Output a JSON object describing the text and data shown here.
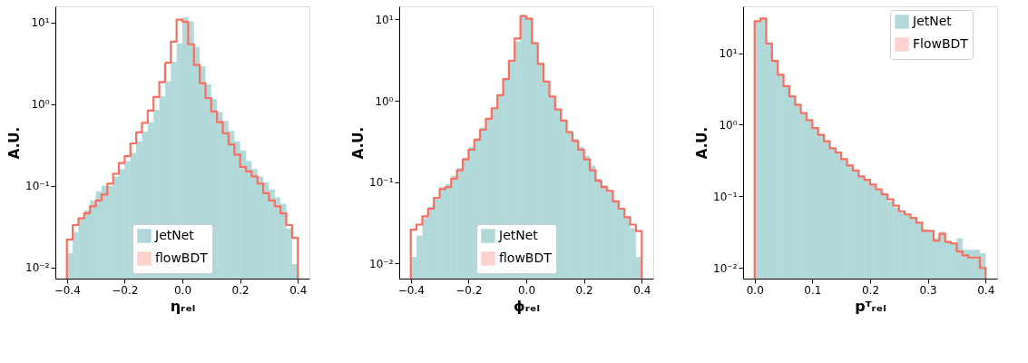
{
  "chart_data": [
    {
      "type": "histogram",
      "xlabel": "ηᵣₑₗ",
      "ylabel": "A.U.",
      "log": true,
      "grid": false,
      "legend": "bottom",
      "bins": [
        -0.4,
        -0.38,
        -0.36,
        -0.34,
        -0.32,
        -0.3,
        -0.28,
        -0.26,
        -0.24,
        -0.22,
        -0.2,
        -0.18,
        -0.16,
        -0.14,
        -0.12,
        -0.1,
        -0.08,
        -0.06,
        -0.04,
        -0.02,
        0.0,
        0.02,
        0.04,
        0.06,
        0.08,
        0.1,
        0.12,
        0.14,
        0.16,
        0.18,
        0.2,
        0.22,
        0.24,
        0.26,
        0.28,
        0.3,
        0.32,
        0.34,
        0.36,
        0.38,
        0.4
      ],
      "xlim": [
        -0.44,
        0.44
      ],
      "xticks": [
        {
          "value": -0.4,
          "label": "−0.4"
        },
        {
          "value": -0.2,
          "label": "−0.2"
        },
        {
          "value": 0,
          "label": "0.0"
        },
        0.2,
        0.4
      ],
      "ylim": [
        0.0073,
        15.7
      ],
      "yticks": [
        {
          "value": 0.01,
          "label": "10⁻²"
        },
        {
          "value": 0.1,
          "label": "10⁻¹"
        },
        {
          "value": 1,
          "label": "10⁰"
        },
        {
          "value": 10,
          "label": "10¹"
        }
      ],
      "series": [
        {
          "name": "JetNet",
          "color": "#008080",
          "line_style": "dotted",
          "values": [
            0.015,
            0.027,
            0.04,
            0.05,
            0.066,
            0.085,
            0.1,
            0.1,
            0.13,
            0.16,
            0.2,
            0.25,
            0.35,
            0.46,
            0.6,
            0.85,
            1.25,
            1.9,
            3.3,
            5.5,
            11.5,
            10.2,
            5.0,
            2.9,
            1.75,
            1.15,
            0.8,
            0.62,
            0.47,
            0.35,
            0.27,
            0.2,
            0.16,
            0.13,
            0.11,
            0.09,
            0.072,
            0.06,
            0.03,
            0.011
          ]
        },
        {
          "name": "flowBDT",
          "color": "#fa6e5f",
          "line_style": "solid",
          "values": [
            0.022,
            0.033,
            0.04,
            0.046,
            0.056,
            0.066,
            0.078,
            0.106,
            0.14,
            0.19,
            0.23,
            0.33,
            0.45,
            0.59,
            0.83,
            1.22,
            1.86,
            3.2,
            5.8,
            10.8,
            10.2,
            5.4,
            3.0,
            1.8,
            1.18,
            0.81,
            0.6,
            0.44,
            0.32,
            0.24,
            0.17,
            0.15,
            0.13,
            0.106,
            0.081,
            0.066,
            0.056,
            0.046,
            0.033,
            0.023
          ]
        }
      ]
    },
    {
      "type": "histogram",
      "xlabel": "ϕᵣₑₗ",
      "ylabel": "A.U.",
      "log": true,
      "grid": false,
      "legend": "bottom",
      "bins": [
        -0.4,
        -0.38,
        -0.36,
        -0.34,
        -0.32,
        -0.3,
        -0.28,
        -0.26,
        -0.24,
        -0.22,
        -0.2,
        -0.18,
        -0.16,
        -0.14,
        -0.12,
        -0.1,
        -0.08,
        -0.06,
        -0.04,
        -0.02,
        0.0,
        0.02,
        0.04,
        0.06,
        0.08,
        0.1,
        0.12,
        0.14,
        0.16,
        0.18,
        0.2,
        0.22,
        0.24,
        0.26,
        0.28,
        0.3,
        0.32,
        0.34,
        0.36,
        0.38,
        0.4
      ],
      "xlim": [
        -0.44,
        0.44
      ],
      "xticks": [
        {
          "value": -0.4,
          "label": "−0.4"
        },
        {
          "value": -0.2,
          "label": "−0.2"
        },
        {
          "value": 0,
          "label": "0.0"
        },
        0.2,
        0.4
      ],
      "ylim": [
        0.0065,
        14.5
      ],
      "yticks": [
        {
          "value": 0.01,
          "label": "10⁻²"
        },
        {
          "value": 0.1,
          "label": "10⁻¹"
        },
        {
          "value": 1,
          "label": "10⁰"
        },
        {
          "value": 10,
          "label": "10¹"
        }
      ],
      "series": [
        {
          "name": "JetNet",
          "color": "#008080",
          "line_style": "dotted",
          "values": [
            0.012,
            0.022,
            0.036,
            0.05,
            0.062,
            0.087,
            0.094,
            0.12,
            0.15,
            0.2,
            0.27,
            0.35,
            0.47,
            0.6,
            0.82,
            1.15,
            1.85,
            3.0,
            5.4,
            11.5,
            10.5,
            5.0,
            2.85,
            1.72,
            1.13,
            0.78,
            0.59,
            0.43,
            0.34,
            0.27,
            0.21,
            0.16,
            0.11,
            0.092,
            0.075,
            0.06,
            0.047,
            0.037,
            0.027,
            0.012
          ]
        },
        {
          "name": "flowBDT",
          "color": "#fa6e5f",
          "line_style": "solid",
          "values": [
            0.026,
            0.03,
            0.038,
            0.047,
            0.064,
            0.082,
            0.087,
            0.11,
            0.14,
            0.19,
            0.25,
            0.33,
            0.44,
            0.6,
            0.81,
            1.17,
            1.85,
            3.1,
            5.85,
            11.0,
            10.2,
            5.1,
            2.85,
            1.72,
            1.13,
            0.78,
            0.57,
            0.41,
            0.32,
            0.25,
            0.19,
            0.14,
            0.104,
            0.087,
            0.078,
            0.058,
            0.047,
            0.037,
            0.03,
            0.025
          ]
        }
      ]
    },
    {
      "type": "histogram",
      "xlabel": "pᵀᵣₑₗ",
      "ylabel": "A.U.",
      "log": true,
      "grid": false,
      "legend": "top right",
      "bins": [
        0.0,
        0.01,
        0.02,
        0.03,
        0.04,
        0.05,
        0.06,
        0.07,
        0.08,
        0.09,
        0.1,
        0.11,
        0.12,
        0.13,
        0.14,
        0.15,
        0.16,
        0.17,
        0.18,
        0.19,
        0.2,
        0.21,
        0.22,
        0.23,
        0.24,
        0.25,
        0.26,
        0.27,
        0.28,
        0.29,
        0.3,
        0.31,
        0.32,
        0.33,
        0.34,
        0.35,
        0.36,
        0.37,
        0.38,
        0.39,
        0.4
      ],
      "xlim": [
        -0.02,
        0.42
      ],
      "xticks": [
        {
          "value": 0,
          "label": "0.0"
        },
        0.1,
        0.2,
        0.3,
        0.4
      ],
      "ylim": [
        0.0071,
        45
      ],
      "yticks": [
        {
          "value": 0.01,
          "label": "10⁻²"
        },
        {
          "value": 0.1,
          "label": "10⁻¹"
        },
        {
          "value": 1,
          "label": "10⁰"
        },
        {
          "value": 10,
          "label": "10¹"
        }
      ],
      "series": [
        {
          "name": "JetNet",
          "color": "#008080",
          "line_style": "dotted",
          "values": [
            27.9,
            30.4,
            13.6,
            7.8,
            5.0,
            3.46,
            2.5,
            1.9,
            1.45,
            1.16,
            0.9,
            0.72,
            0.59,
            0.47,
            0.41,
            0.33,
            0.27,
            0.23,
            0.19,
            0.17,
            0.146,
            0.125,
            0.105,
            0.085,
            0.07,
            0.06,
            0.055,
            0.05,
            0.043,
            0.035,
            0.033,
            0.026,
            0.032,
            0.024,
            0.022,
            0.026,
            0.018,
            0.018,
            0.018,
            0.016
          ]
        },
        {
          "name": "FlowBDT",
          "color": "#fa6e5f",
          "line_style": "solid",
          "values": [
            27.9,
            30.4,
            13.6,
            7.8,
            5.0,
            3.46,
            2.5,
            1.9,
            1.45,
            1.16,
            0.9,
            0.72,
            0.59,
            0.47,
            0.41,
            0.33,
            0.27,
            0.23,
            0.19,
            0.17,
            0.146,
            0.125,
            0.107,
            0.091,
            0.074,
            0.062,
            0.056,
            0.05,
            0.043,
            0.033,
            0.033,
            0.024,
            0.03,
            0.023,
            0.022,
            0.017,
            0.015,
            0.014,
            0.014,
            0.01
          ]
        }
      ]
    }
  ]
}
